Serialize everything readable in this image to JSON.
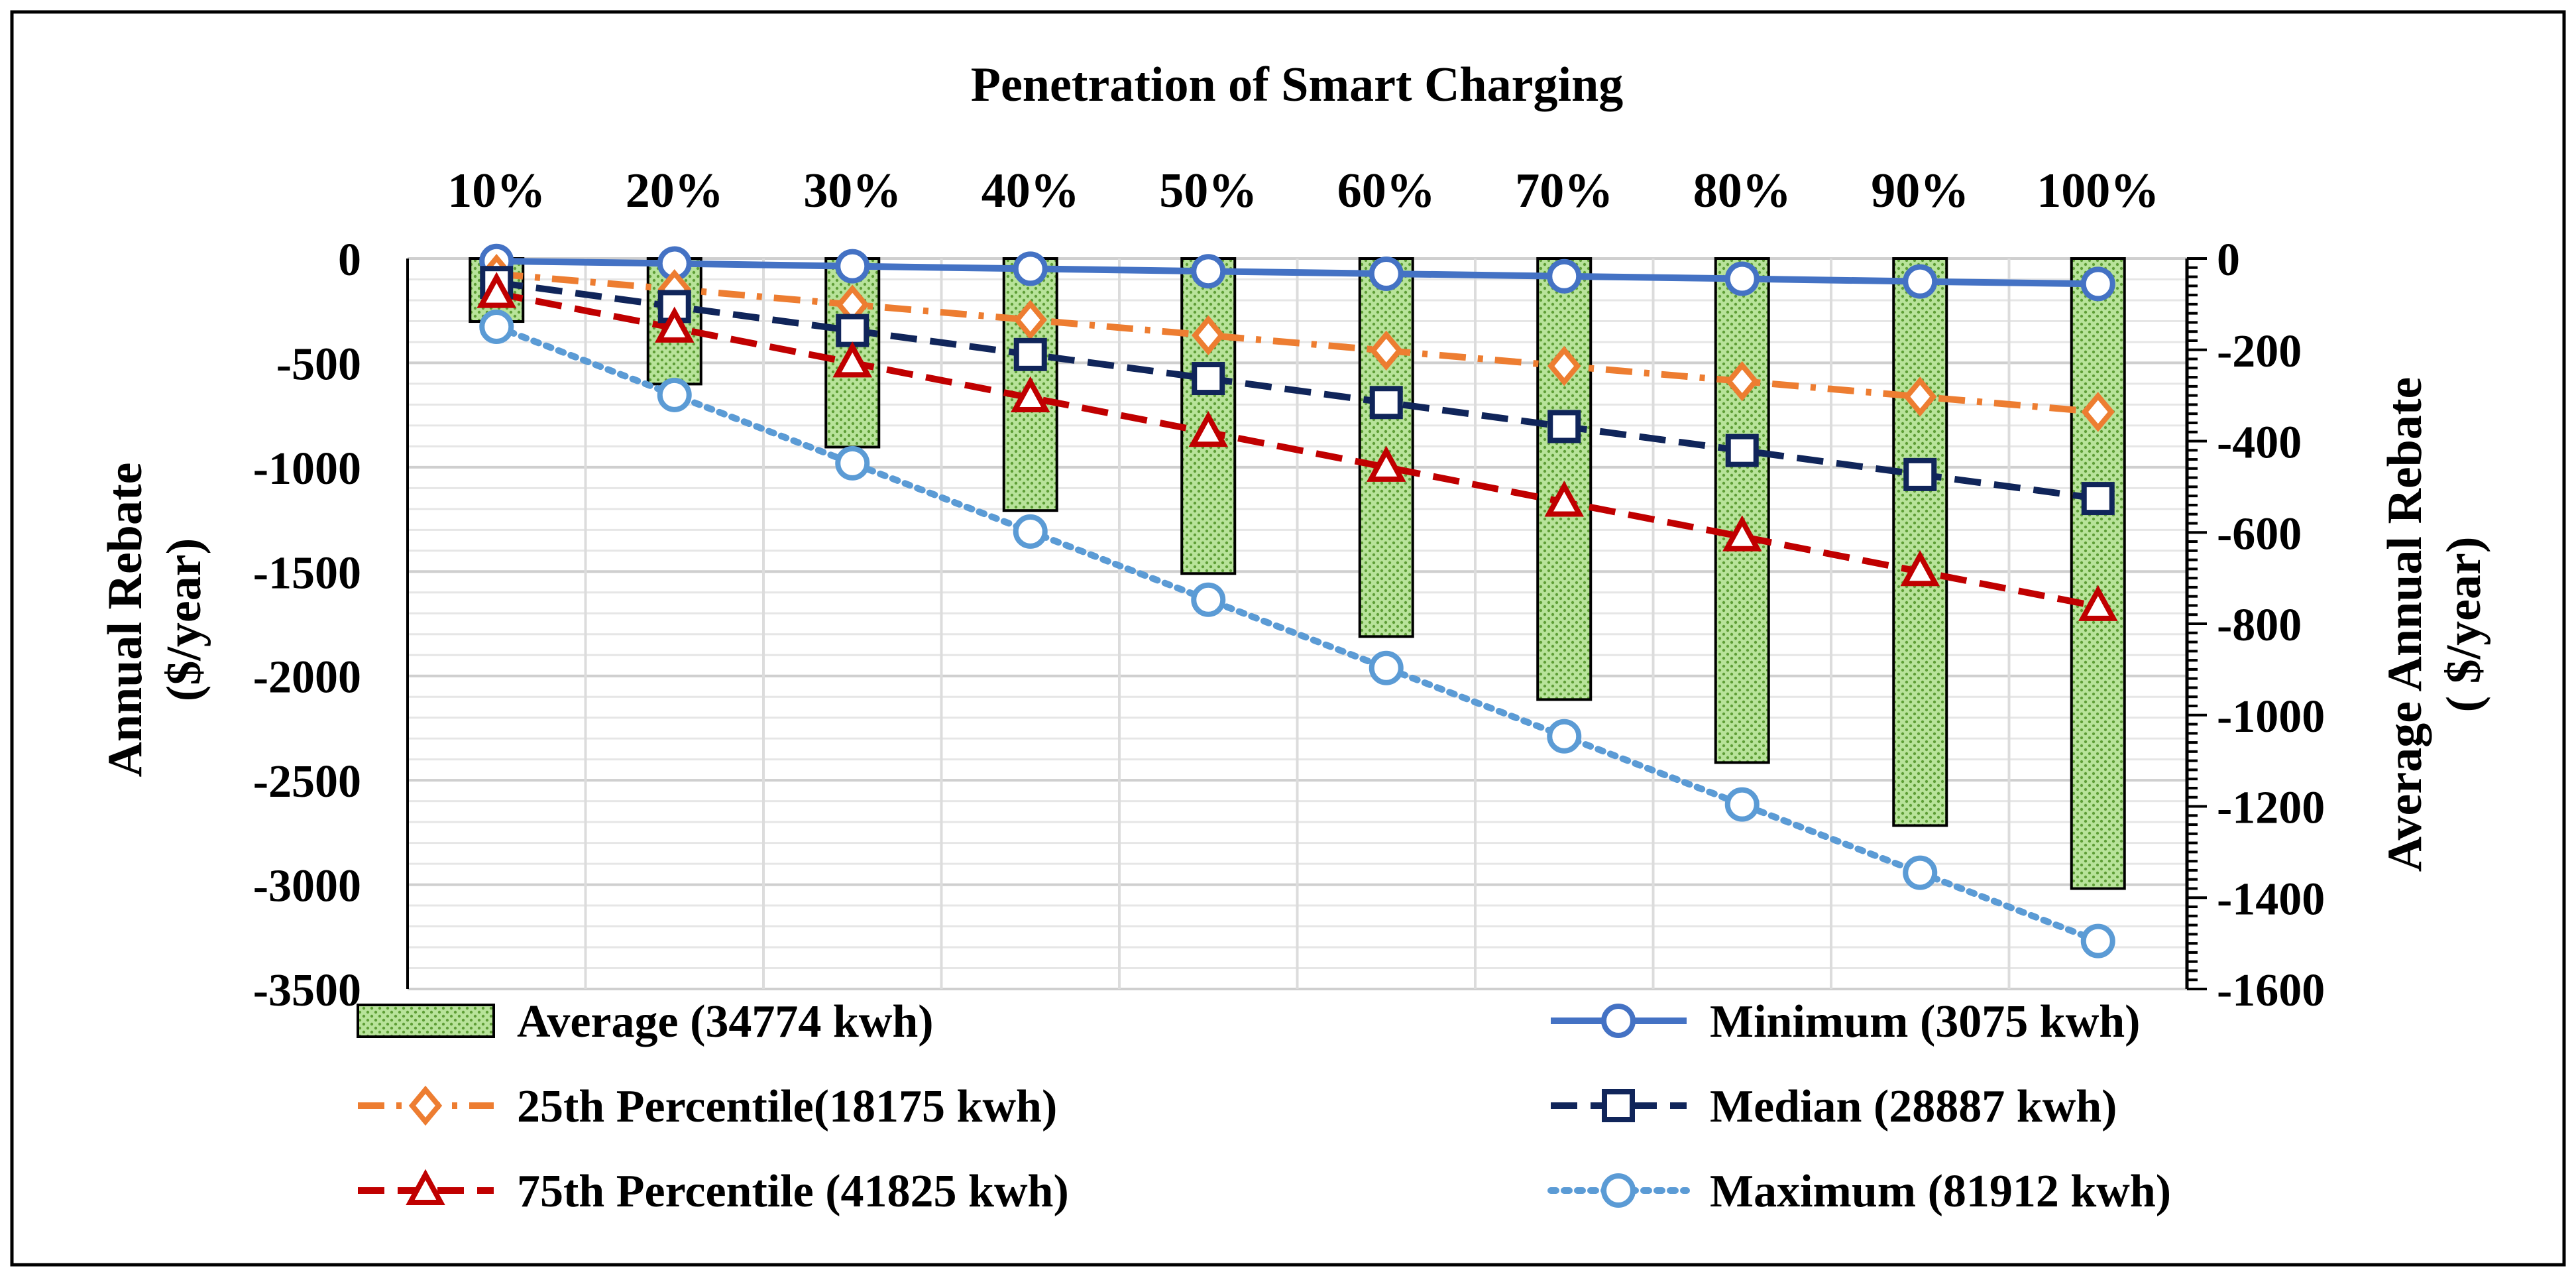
{
  "chart_data": {
    "type": "bar+line",
    "title": "Penetration of Smart Charging",
    "categories": [
      "10%",
      "20%",
      "30%",
      "40%",
      "50%",
      "60%",
      "70%",
      "80%",
      "90%",
      "100%"
    ],
    "ylabel_left": [
      "Annual Rebate",
      "($/year)"
    ],
    "ylabel_right": [
      "Average Annual Rebate",
      "( $/year)"
    ],
    "ylim_left": [
      -3500,
      0
    ],
    "ylim_right": [
      -1600,
      0
    ],
    "yticks_left": [
      "0",
      "-500",
      "-1000",
      "-1500",
      "-2000",
      "-2500",
      "-3000",
      "-3500"
    ],
    "yticks_right": [
      "0",
      "-200",
      "-400",
      "-600",
      "-800",
      "-1000",
      "-1200",
      "-1400",
      "-1600"
    ],
    "gridlines": true,
    "legend_position": "bottom",
    "bars": {
      "name": "Average (34774 kwh)",
      "axis": "right",
      "color": "#8fd15f",
      "values": [
        -138,
        -275,
        -413,
        -552,
        -690,
        -828,
        -966,
        -1104,
        -1242,
        -1380
      ]
    },
    "series": [
      {
        "name": "Minimum (3075 kwh)",
        "axis": "left",
        "color": "#4472c4",
        "style": "solid",
        "marker": "circle",
        "values": [
          -12,
          -24,
          -37,
          -49,
          -61,
          -73,
          -85,
          -97,
          -110,
          -122
        ]
      },
      {
        "name": "25th Percentile(18175 kwh)",
        "axis": "left",
        "color": "#ed7d31",
        "style": "dashdot",
        "marker": "diamond",
        "values": [
          -74,
          -147,
          -221,
          -294,
          -368,
          -441,
          -515,
          -588,
          -662,
          -735
        ]
      },
      {
        "name": "Median (28887 kwh)",
        "axis": "left",
        "color": "#10255a",
        "style": "dashed",
        "marker": "square",
        "values": [
          -115,
          -230,
          -345,
          -460,
          -575,
          -690,
          -805,
          -920,
          -1035,
          -1150
        ]
      },
      {
        "name": "75th Percentile (41825 kwh)",
        "axis": "left",
        "color": "#c00000",
        "style": "dashed",
        "marker": "triangle",
        "values": [
          -167,
          -333,
          -500,
          -667,
          -833,
          -1000,
          -1167,
          -1333,
          -1500,
          -1667
        ]
      },
      {
        "name": "Maximum (81912 kwh)",
        "axis": "left",
        "color": "#5b9bd5",
        "style": "dotted",
        "marker": "circle",
        "values": [
          -327,
          -654,
          -981,
          -1308,
          -1635,
          -1962,
          -2289,
          -2616,
          -2943,
          -3270
        ]
      }
    ],
    "legend": [
      "Average (34774 kwh)",
      "Minimum (3075 kwh)",
      "25th Percentile(18175 kwh)",
      "Median (28887 kwh)",
      "75th Percentile (41825 kwh)",
      "Maximum (81912 kwh)"
    ]
  }
}
